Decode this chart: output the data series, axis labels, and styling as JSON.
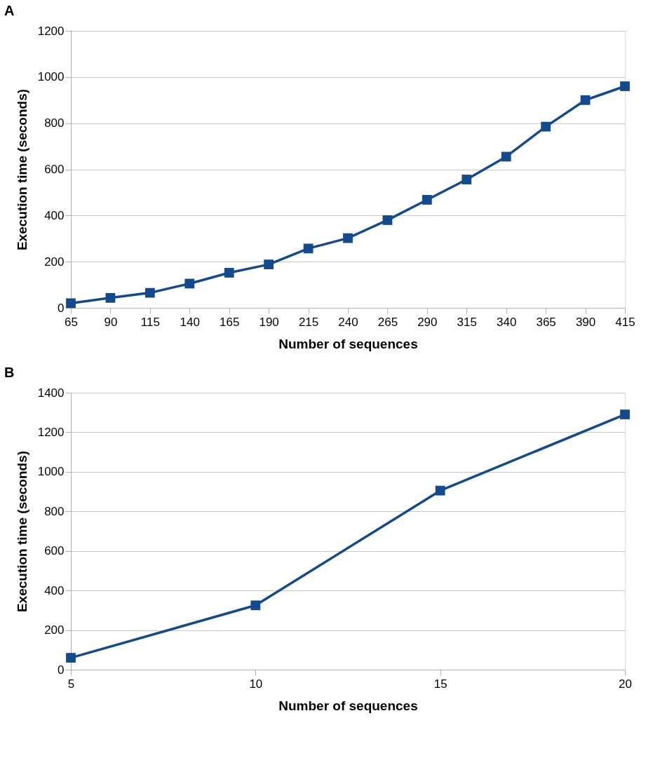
{
  "chart_data": [
    {
      "type": "line",
      "title": "A",
      "xlabel": "Number of sequences",
      "ylabel": "Execution time (seconds)",
      "x": [
        65,
        90,
        115,
        140,
        165,
        190,
        215,
        240,
        265,
        290,
        315,
        340,
        365,
        390,
        415
      ],
      "xlim": [
        65,
        415
      ],
      "xticks": [
        65,
        90,
        115,
        140,
        165,
        190,
        215,
        240,
        265,
        290,
        315,
        340,
        365,
        390,
        415
      ],
      "ylim": [
        0,
        1200
      ],
      "yticks": [
        0,
        200,
        400,
        600,
        800,
        1000,
        1200
      ],
      "grid": "y",
      "marker": "square",
      "line_style": "solid",
      "series": [
        {
          "color": "#134a8e",
          "values": [
            20,
            43,
            65,
            105,
            152,
            188,
            257,
            302,
            380,
            468,
            556,
            655,
            785,
            900,
            960
          ]
        }
      ]
    },
    {
      "type": "line",
      "title": "B",
      "xlabel": "Number of sequences",
      "ylabel": "Execution time (seconds)",
      "x": [
        5,
        10,
        15,
        20
      ],
      "xlim": [
        5,
        20
      ],
      "xticks": [
        5,
        10,
        15,
        20
      ],
      "ylim": [
        0,
        1400
      ],
      "yticks": [
        0,
        200,
        400,
        600,
        800,
        1000,
        1200,
        1400
      ],
      "grid": "y",
      "marker": "square",
      "line_style": "solid",
      "series": [
        {
          "color": "#134a8e",
          "values": [
            60,
            325,
            905,
            1290
          ]
        }
      ]
    }
  ]
}
